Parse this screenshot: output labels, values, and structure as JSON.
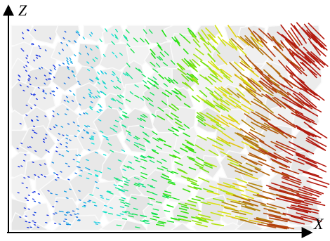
{
  "axes": {
    "z_label": "Z",
    "x_label": "X"
  }
}
